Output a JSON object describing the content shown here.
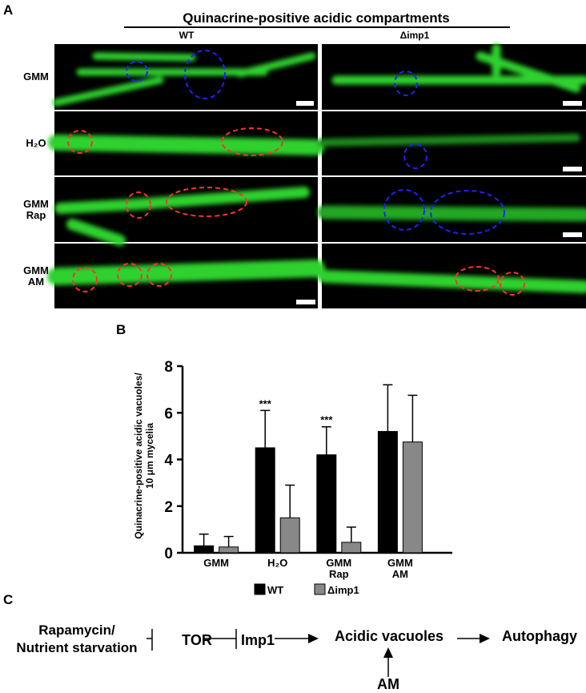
{
  "panel_a": {
    "label": "A",
    "title": "Quinacrine-positive acidic compartments",
    "columns": [
      "WT",
      "Δimp1"
    ],
    "rows": [
      "GMM",
      "H₂O",
      "GMM\nRap",
      "GMM\nAM"
    ]
  },
  "chart_data": {
    "type": "bar",
    "panel": "B",
    "ylabel": "Quinacrine-positive acidic vacuoles/\n10 μm mycelia",
    "categories": [
      "GMM",
      "H₂O",
      "GMM\nRap",
      "GMM\nAM"
    ],
    "series": [
      {
        "name": "WT",
        "color": "#000000",
        "values": [
          0.3,
          4.5,
          4.2,
          5.2
        ],
        "errors": [
          0.5,
          1.6,
          1.2,
          2.0
        ]
      },
      {
        "name": "Δimp1",
        "color": "#888888",
        "values": [
          0.25,
          1.5,
          0.45,
          4.75
        ],
        "errors": [
          0.45,
          1.4,
          0.65,
          2.0
        ]
      }
    ],
    "annotations": [
      "***",
      "***"
    ],
    "ylim": [
      0,
      8
    ],
    "yticks": [
      0,
      2,
      4,
      6,
      8
    ]
  },
  "panel_c": {
    "label": "C",
    "nodes": [
      "Rapamycin/\nNutrient starvation",
      "TOR",
      "Imp1",
      "Acidic vacuoles",
      "Autophagy",
      "AM"
    ]
  }
}
